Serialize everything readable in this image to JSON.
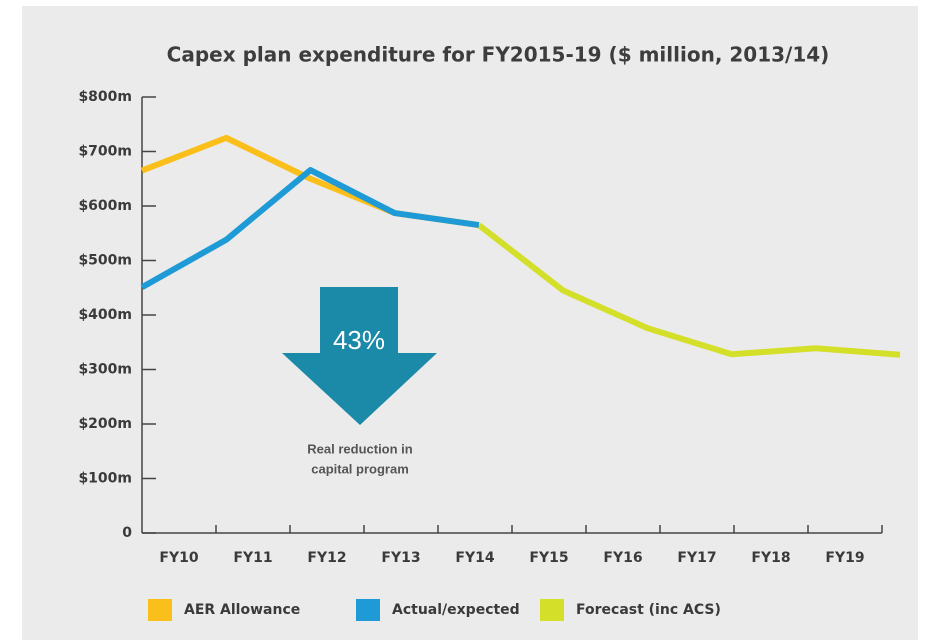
{
  "chart_data": {
    "type": "line",
    "title": "Capex plan expenditure for FY2015-19 ($ million, 2013/14)",
    "categories": [
      "FY10",
      "FY11",
      "FY12",
      "FY13",
      "FY14",
      "FY15",
      "FY16",
      "FY17",
      "FY18",
      "FY19"
    ],
    "series": [
      {
        "name": "AER Allowance",
        "color": "#fbbf1b",
        "values": [
          665,
          725,
          650,
          587,
          565,
          null,
          null,
          null,
          null,
          null
        ]
      },
      {
        "name": "Actual/expected",
        "color": "#1e9ad6",
        "values": [
          451,
          538,
          666,
          587,
          565,
          null,
          null,
          null,
          null,
          null
        ]
      },
      {
        "name": "Forecast (inc ACS)",
        "color": "#d4df2a",
        "values": [
          null,
          null,
          null,
          null,
          565,
          445,
          376,
          328,
          339,
          327
        ]
      }
    ],
    "ylim": [
      0,
      800
    ],
    "yticks": [
      0,
      {
        "value": 100,
        "label": "$100m"
      },
      {
        "value": 200,
        "label": "$200m"
      },
      {
        "value": 300,
        "label": "$300m"
      },
      {
        "value": 400,
        "label": "$400m"
      },
      {
        "value": 500,
        "label": "$500m"
      },
      {
        "value": 600,
        "label": "$600m"
      },
      {
        "value": 700,
        "label": "$700m"
      },
      {
        "value": 800,
        "label": "$800m"
      }
    ],
    "annotation": {
      "value_label": "43%",
      "text_lines": [
        "Real reduction in",
        "capital program"
      ]
    },
    "legend": "bottom"
  }
}
